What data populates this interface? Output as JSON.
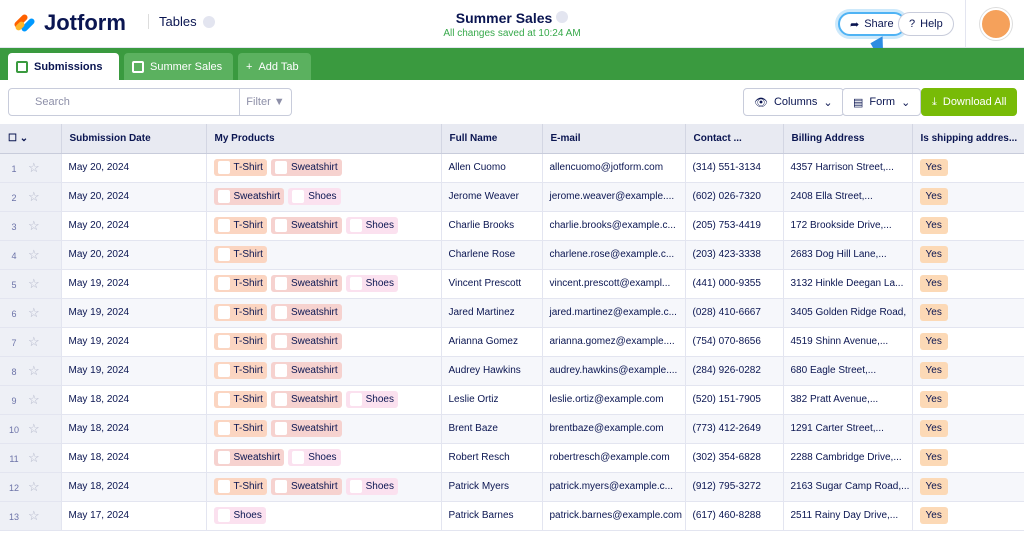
{
  "header": {
    "logo": "Jotform",
    "nav": "Tables",
    "title": "Summer Sales",
    "status": "All changes saved at 10:24 AM",
    "share": "Share",
    "help": "Help"
  },
  "tabs": [
    "Submissions",
    "Summer Sales",
    "Add Tab"
  ],
  "toolbar": {
    "search": "Search",
    "filter": "Filter",
    "columns": "Columns",
    "form": "Form",
    "download": "Download All"
  },
  "table": {
    "columns": [
      "Submission Date",
      "My Products",
      "Full Name",
      "E-mail",
      "Contact ...",
      "Billing Address",
      "Is shipping addres..."
    ],
    "rows": [
      {
        "num": "1",
        "date": "May 20, 2024",
        "products": [
          "T-Shirt",
          "Sweatshirt"
        ],
        "name": "Allen Cuomo",
        "email": "allencuomo@jotform.com",
        "phone": "(314) 551-3134",
        "address": "4357 Harrison Street,...",
        "shipping": "Yes"
      },
      {
        "num": "2",
        "date": "May 20, 2024",
        "products": [
          "Sweatshirt",
          "Shoes"
        ],
        "name": "Jerome Weaver",
        "email": "jerome.weaver@example....",
        "phone": "(602) 026-7320",
        "address": "2408 Ella Street,...",
        "shipping": "Yes"
      },
      {
        "num": "3",
        "date": "May 20, 2024",
        "products": [
          "T-Shirt",
          "Sweatshirt",
          "Shoes"
        ],
        "name": "Charlie Brooks",
        "email": "charlie.brooks@example.c...",
        "phone": "(205) 753-4419",
        "address": "172 Brookside Drive,...",
        "shipping": "Yes"
      },
      {
        "num": "4",
        "date": "May 20, 2024",
        "products": [
          "T-Shirt"
        ],
        "name": "Charlene Rose",
        "email": "charlene.rose@example.c...",
        "phone": "(203) 423-3338",
        "address": "2683 Dog Hill Lane,...",
        "shipping": "Yes"
      },
      {
        "num": "5",
        "date": "May 19, 2024",
        "products": [
          "T-Shirt",
          "Sweatshirt",
          "Shoes"
        ],
        "name": "Vincent Prescott",
        "email": "vincent.prescott@exampl...",
        "phone": "(441) 000-9355",
        "address": "3132 Hinkle Deegan La...",
        "shipping": "Yes"
      },
      {
        "num": "6",
        "date": "May 19, 2024",
        "products": [
          "T-Shirt",
          "Sweatshirt"
        ],
        "name": "Jared Martinez",
        "email": "jared.martinez@example.c...",
        "phone": "(028) 410-6667",
        "address": "3405 Golden Ridge Road,",
        "shipping": "Yes"
      },
      {
        "num": "7",
        "date": "May 19, 2024",
        "products": [
          "T-Shirt",
          "Sweatshirt"
        ],
        "name": "Arianna Gomez",
        "email": "arianna.gomez@example....",
        "phone": "(754) 070-8656",
        "address": "4519 Shinn Avenue,...",
        "shipping": "Yes"
      },
      {
        "num": "8",
        "date": "May 19, 2024",
        "products": [
          "T-Shirt",
          "Sweatshirt"
        ],
        "name": "Audrey Hawkins",
        "email": "audrey.hawkins@example....",
        "phone": "(284) 926-0282",
        "address": "680 Eagle Street,...",
        "shipping": "Yes"
      },
      {
        "num": "9",
        "date": "May 18, 2024",
        "products": [
          "T-Shirt",
          "Sweatshirt",
          "Shoes"
        ],
        "name": "Leslie Ortiz",
        "email": "leslie.ortiz@example.com",
        "phone": "(520) 151-7905",
        "address": "382 Pratt Avenue,...",
        "shipping": "Yes"
      },
      {
        "num": "10",
        "date": "May 18, 2024",
        "products": [
          "T-Shirt",
          "Sweatshirt"
        ],
        "name": "Brent Baze",
        "email": "brentbaze@example.com",
        "phone": "(773) 412-2649",
        "address": "1291 Carter Street,...",
        "shipping": "Yes"
      },
      {
        "num": "11",
        "date": "May 18, 2024",
        "products": [
          "Sweatshirt",
          "Shoes"
        ],
        "name": "Robert Resch",
        "email": "robertresch@example.com",
        "phone": "(302) 354-6828",
        "address": "2288 Cambridge Drive,...",
        "shipping": "Yes"
      },
      {
        "num": "12",
        "date": "May 18, 2024",
        "products": [
          "T-Shirt",
          "Sweatshirt",
          "Shoes"
        ],
        "name": "Patrick Myers",
        "email": "patrick.myers@example.c...",
        "phone": "(912) 795-3272",
        "address": "2163 Sugar Camp Road,...",
        "shipping": "Yes"
      },
      {
        "num": "13",
        "date": "May 17, 2024",
        "products": [
          "Shoes"
        ],
        "name": "Patrick Barnes",
        "email": "patrick.barnes@example.com",
        "phone": "(617) 460-8288",
        "address": "2511 Rainy Day Drive,...",
        "shipping": "Yes"
      }
    ]
  }
}
